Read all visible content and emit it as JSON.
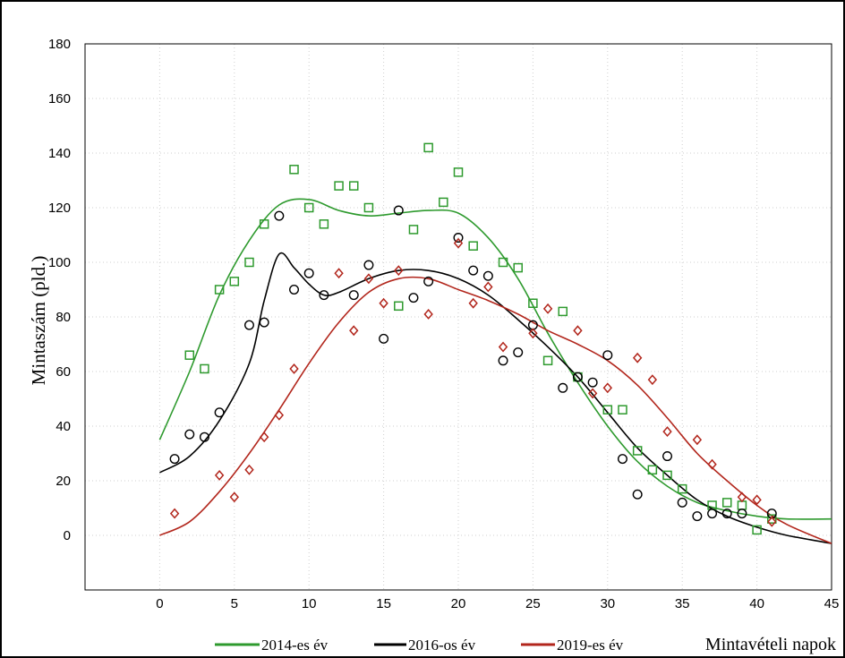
{
  "chart_data": {
    "type": "scatter",
    "title": "",
    "xlabel": "Mintavételi napok",
    "ylabel": "Mintaszám (pld.)",
    "xlim": [
      -5,
      45
    ],
    "ylim": [
      -20,
      180
    ],
    "xticks": [
      0,
      5,
      10,
      15,
      20,
      25,
      30,
      35,
      40,
      45
    ],
    "yticks": [
      0,
      20,
      40,
      60,
      80,
      100,
      120,
      140,
      160,
      180
    ],
    "grid": true,
    "legend_position": "bottom",
    "series": [
      {
        "name": "2014-es év",
        "color": "#2e9a2e",
        "marker": "square",
        "points": [
          [
            2,
            66
          ],
          [
            3,
            61
          ],
          [
            4,
            90
          ],
          [
            5,
            93
          ],
          [
            6,
            100
          ],
          [
            7,
            114
          ],
          [
            9,
            134
          ],
          [
            10,
            120
          ],
          [
            11,
            114
          ],
          [
            12,
            128
          ],
          [
            13,
            128
          ],
          [
            14,
            120
          ],
          [
            16,
            84
          ],
          [
            17,
            112
          ],
          [
            18,
            142
          ],
          [
            19,
            122
          ],
          [
            20,
            133
          ],
          [
            21,
            106
          ],
          [
            23,
            100
          ],
          [
            24,
            98
          ],
          [
            25,
            85
          ],
          [
            26,
            64
          ],
          [
            27,
            82
          ],
          [
            28,
            58
          ],
          [
            30,
            46
          ],
          [
            31,
            46
          ],
          [
            32,
            31
          ],
          [
            33,
            24
          ],
          [
            34,
            22
          ],
          [
            35,
            17
          ],
          [
            37,
            11
          ],
          [
            38,
            12
          ],
          [
            39,
            11
          ],
          [
            40,
            2
          ],
          [
            41,
            6
          ]
        ],
        "fit": [
          [
            0,
            35
          ],
          [
            2,
            60
          ],
          [
            4,
            88
          ],
          [
            6,
            108
          ],
          [
            8,
            121
          ],
          [
            10,
            123
          ],
          [
            12,
            119
          ],
          [
            14,
            117
          ],
          [
            16,
            118
          ],
          [
            18,
            119
          ],
          [
            20,
            118
          ],
          [
            22,
            109
          ],
          [
            24,
            94
          ],
          [
            26,
            74
          ],
          [
            28,
            56
          ],
          [
            30,
            40
          ],
          [
            32,
            27
          ],
          [
            34,
            18
          ],
          [
            36,
            12
          ],
          [
            38,
            9
          ],
          [
            40,
            7
          ],
          [
            42,
            6
          ],
          [
            45,
            6
          ]
        ]
      },
      {
        "name": "2016-os év",
        "color": "#000000",
        "marker": "circle",
        "points": [
          [
            1,
            28
          ],
          [
            2,
            37
          ],
          [
            3,
            36
          ],
          [
            4,
            45
          ],
          [
            6,
            77
          ],
          [
            7,
            78
          ],
          [
            8,
            117
          ],
          [
            9,
            90
          ],
          [
            10,
            96
          ],
          [
            11,
            88
          ],
          [
            13,
            88
          ],
          [
            14,
            99
          ],
          [
            15,
            72
          ],
          [
            16,
            119
          ],
          [
            17,
            87
          ],
          [
            18,
            93
          ],
          [
            20,
            109
          ],
          [
            21,
            97
          ],
          [
            22,
            95
          ],
          [
            23,
            64
          ],
          [
            24,
            67
          ],
          [
            25,
            77
          ],
          [
            27,
            54
          ],
          [
            28,
            58
          ],
          [
            29,
            56
          ],
          [
            30,
            66
          ],
          [
            31,
            28
          ],
          [
            32,
            15
          ],
          [
            34,
            29
          ],
          [
            35,
            12
          ],
          [
            36,
            7
          ],
          [
            37,
            8
          ],
          [
            38,
            8
          ],
          [
            39,
            8
          ],
          [
            41,
            8
          ]
        ],
        "fit": [
          [
            0,
            23
          ],
          [
            2,
            29
          ],
          [
            4,
            42
          ],
          [
            6,
            63
          ],
          [
            7,
            86
          ],
          [
            8,
            103
          ],
          [
            9,
            98
          ],
          [
            10,
            92
          ],
          [
            11,
            88
          ],
          [
            12,
            89
          ],
          [
            14,
            94
          ],
          [
            16,
            97
          ],
          [
            18,
            97
          ],
          [
            20,
            94
          ],
          [
            22,
            88
          ],
          [
            24,
            79
          ],
          [
            26,
            69
          ],
          [
            28,
            58
          ],
          [
            30,
            45
          ],
          [
            32,
            32
          ],
          [
            34,
            22
          ],
          [
            36,
            13
          ],
          [
            38,
            7
          ],
          [
            40,
            3
          ],
          [
            42,
            0
          ],
          [
            45,
            -3
          ]
        ]
      },
      {
        "name": "2019-es év",
        "color": "#b2261c",
        "marker": "diamond",
        "points": [
          [
            1,
            8
          ],
          [
            4,
            22
          ],
          [
            5,
            14
          ],
          [
            6,
            24
          ],
          [
            7,
            36
          ],
          [
            8,
            44
          ],
          [
            9,
            61
          ],
          [
            12,
            96
          ],
          [
            13,
            75
          ],
          [
            14,
            94
          ],
          [
            15,
            85
          ],
          [
            16,
            97
          ],
          [
            18,
            81
          ],
          [
            20,
            107
          ],
          [
            21,
            85
          ],
          [
            22,
            91
          ],
          [
            23,
            69
          ],
          [
            25,
            74
          ],
          [
            26,
            83
          ],
          [
            28,
            75
          ],
          [
            29,
            52
          ],
          [
            30,
            54
          ],
          [
            32,
            65
          ],
          [
            33,
            57
          ],
          [
            34,
            38
          ],
          [
            36,
            35
          ],
          [
            37,
            26
          ],
          [
            39,
            14
          ],
          [
            40,
            13
          ],
          [
            41,
            5
          ]
        ],
        "fit": [
          [
            0,
            0
          ],
          [
            2,
            5
          ],
          [
            4,
            16
          ],
          [
            6,
            30
          ],
          [
            8,
            46
          ],
          [
            10,
            63
          ],
          [
            12,
            78
          ],
          [
            14,
            89
          ],
          [
            16,
            94
          ],
          [
            18,
            94
          ],
          [
            20,
            90
          ],
          [
            22,
            86
          ],
          [
            24,
            81
          ],
          [
            26,
            75
          ],
          [
            28,
            70
          ],
          [
            30,
            64
          ],
          [
            32,
            55
          ],
          [
            34,
            43
          ],
          [
            36,
            30
          ],
          [
            38,
            20
          ],
          [
            40,
            11
          ],
          [
            42,
            4
          ],
          [
            45,
            -3
          ]
        ]
      }
    ]
  }
}
